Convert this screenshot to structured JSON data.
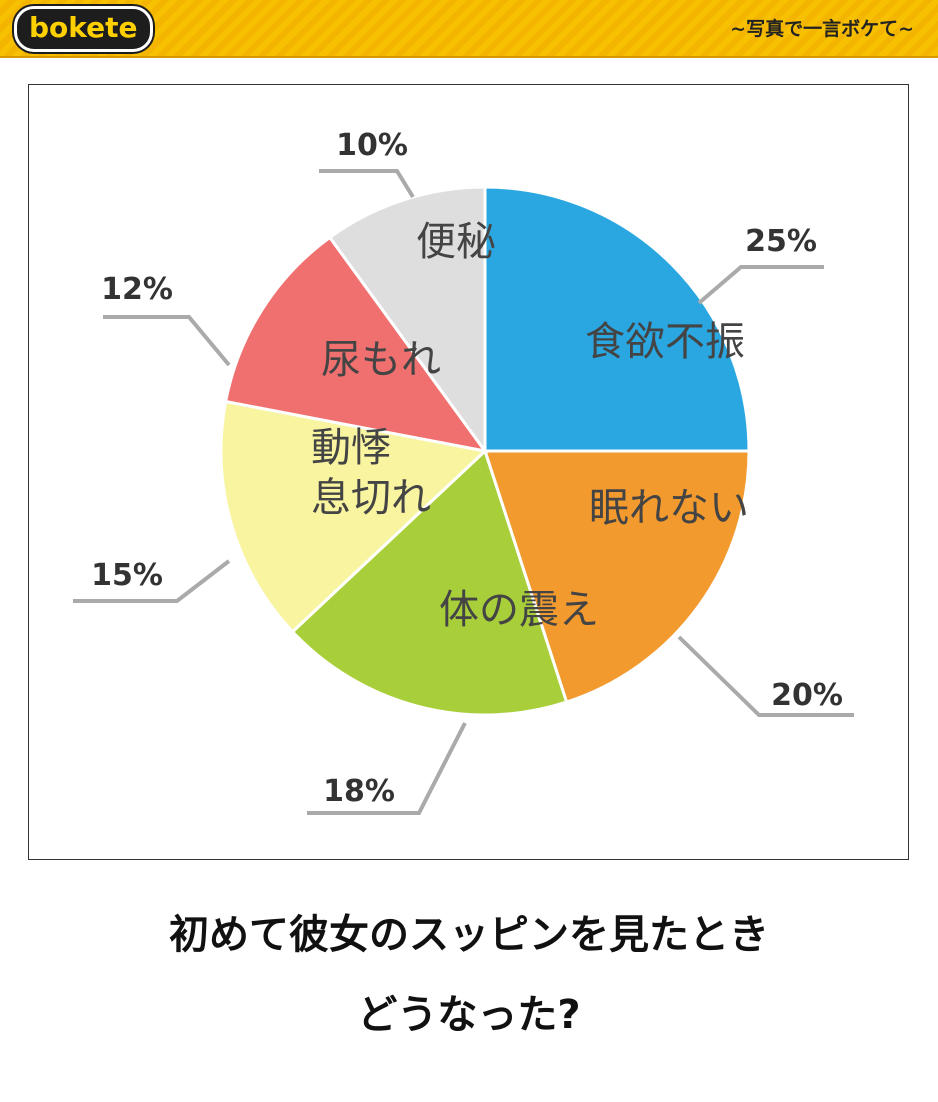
{
  "header": {
    "logo_text": "bokete",
    "tagline": "~写真で一言ボケて~"
  },
  "caption": {
    "line1": "初めて彼女のスッピンを見たとき",
    "line2": "どうなった?"
  },
  "colors": {
    "header_bg": "#f7c000",
    "slice_1": "#2aa6e0",
    "slice_2": "#f29a2e",
    "slice_3": "#a8cf3a",
    "slice_4": "#f8f4a0",
    "slice_5": "#f07070",
    "slice_6": "#dedede"
  },
  "chart_data": {
    "type": "pie",
    "slices": [
      {
        "label": "食欲不振",
        "label_lines": [
          "食欲不振"
        ],
        "value": 25,
        "value_label": "25%",
        "color": "#2aa6e0"
      },
      {
        "label": "眠れない",
        "label_lines": [
          "眠れない"
        ],
        "value": 20,
        "value_label": "20%",
        "color": "#f29a2e"
      },
      {
        "label": "体の震え",
        "label_lines": [
          "体の震え"
        ],
        "value": 18,
        "value_label": "18%",
        "color": "#a8cf3a"
      },
      {
        "label": "動悸息切れ",
        "label_lines": [
          "動悸",
          "息切れ"
        ],
        "value": 15,
        "value_label": "15%",
        "color": "#f8f4a0"
      },
      {
        "label": "尿もれ",
        "label_lines": [
          "尿もれ"
        ],
        "value": 12,
        "value_label": "12%",
        "color": "#f07070"
      },
      {
        "label": "便秘",
        "label_lines": [
          "便秘"
        ],
        "value": 10,
        "value_label": "10%",
        "color": "#dedede"
      }
    ]
  }
}
